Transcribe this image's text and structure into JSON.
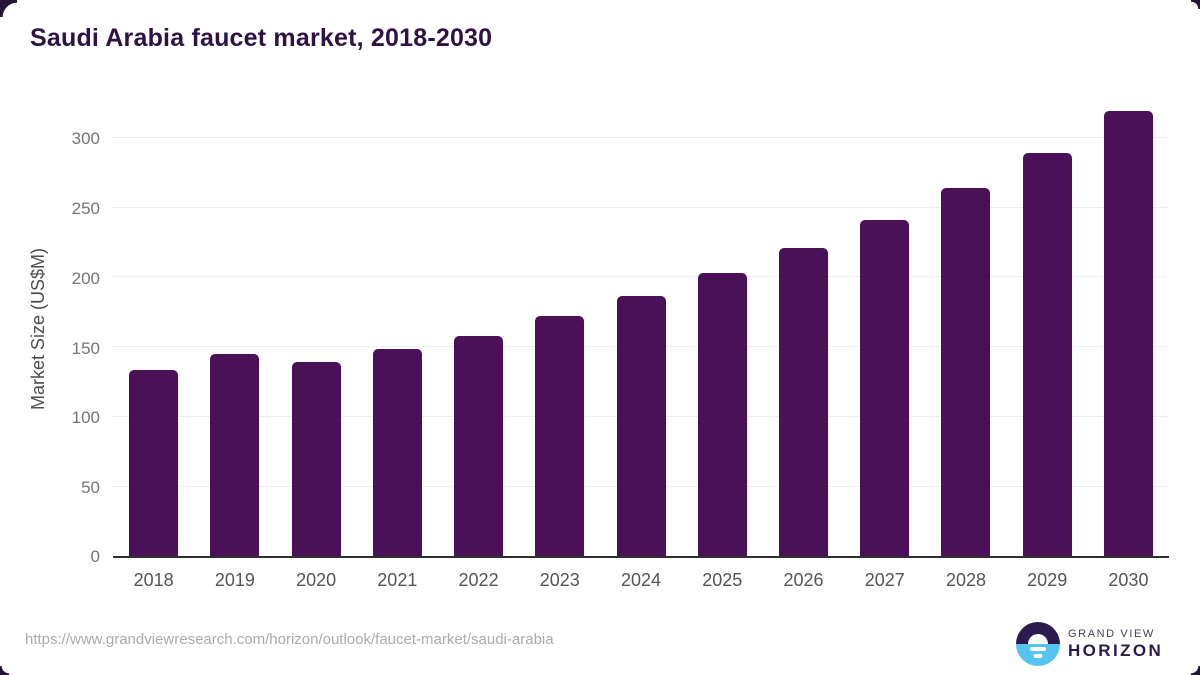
{
  "title": "Saudi Arabia faucet market, 2018-2030",
  "chart_data": {
    "type": "bar",
    "title": "Saudi Arabia faucet market, 2018-2030",
    "categories": [
      "2018",
      "2019",
      "2020",
      "2021",
      "2022",
      "2023",
      "2024",
      "2025",
      "2026",
      "2027",
      "2028",
      "2029",
      "2030"
    ],
    "values": [
      133,
      145,
      139,
      148,
      158,
      172,
      186,
      203,
      221,
      241,
      264,
      289,
      319
    ],
    "xlabel": "",
    "ylabel": "Market Size (US$M)",
    "ylim": [
      0,
      320
    ],
    "yticks": [
      0,
      50,
      100,
      150,
      200,
      250,
      300
    ],
    "grid": true,
    "legend": "none",
    "bar_color": "#4A1158"
  },
  "colors": {
    "bar": "#4A1158",
    "title": "#2C1245",
    "axis_line": "#2f2f2f",
    "gridline": "#ececec",
    "tick_label": "#757575",
    "x_label": "#555555",
    "url_text": "#ababab",
    "logo_dark": "#2B1B4D",
    "logo_blue": "#56C3F0"
  },
  "footer": {
    "source_url": "https://www.grandviewresearch.com/horizon/outlook/faucet-market/saudi-arabia",
    "logo": {
      "line1": "GRAND VIEW",
      "line2": "HORIZON",
      "icon": "horizon-sunset-icon"
    }
  }
}
